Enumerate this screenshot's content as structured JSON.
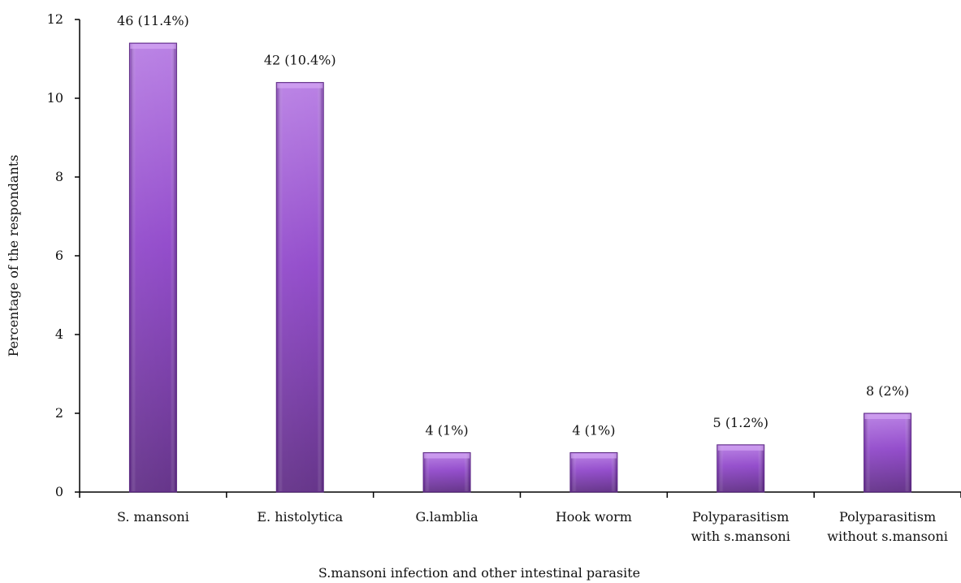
{
  "chart_data": {
    "type": "bar",
    "title": "",
    "xlabel": "S.mansoni infection and other intestinal parasite",
    "ylabel": "Percentage of the respondants",
    "ylim": [
      0,
      12
    ],
    "yticks": [
      0,
      2,
      4,
      6,
      8,
      10,
      12
    ],
    "grid": false,
    "legend": "none",
    "bar_color": "#8E44C9",
    "categories": [
      [
        "S. mansoni"
      ],
      [
        "E. histolytica"
      ],
      [
        "G.lamblia"
      ],
      [
        "Hook worm"
      ],
      [
        "Polyparasitism",
        "with s.mansoni"
      ],
      [
        "Polyparasitism",
        "without s.mansoni"
      ]
    ],
    "values": [
      11.4,
      10.4,
      1,
      1,
      1.2,
      2
    ],
    "data_labels": [
      "46 (11.4%)",
      "42 (10.4%)",
      "4 (1%)",
      "4 (1%)",
      "5 (1.2%)",
      "8 (2%)"
    ]
  }
}
